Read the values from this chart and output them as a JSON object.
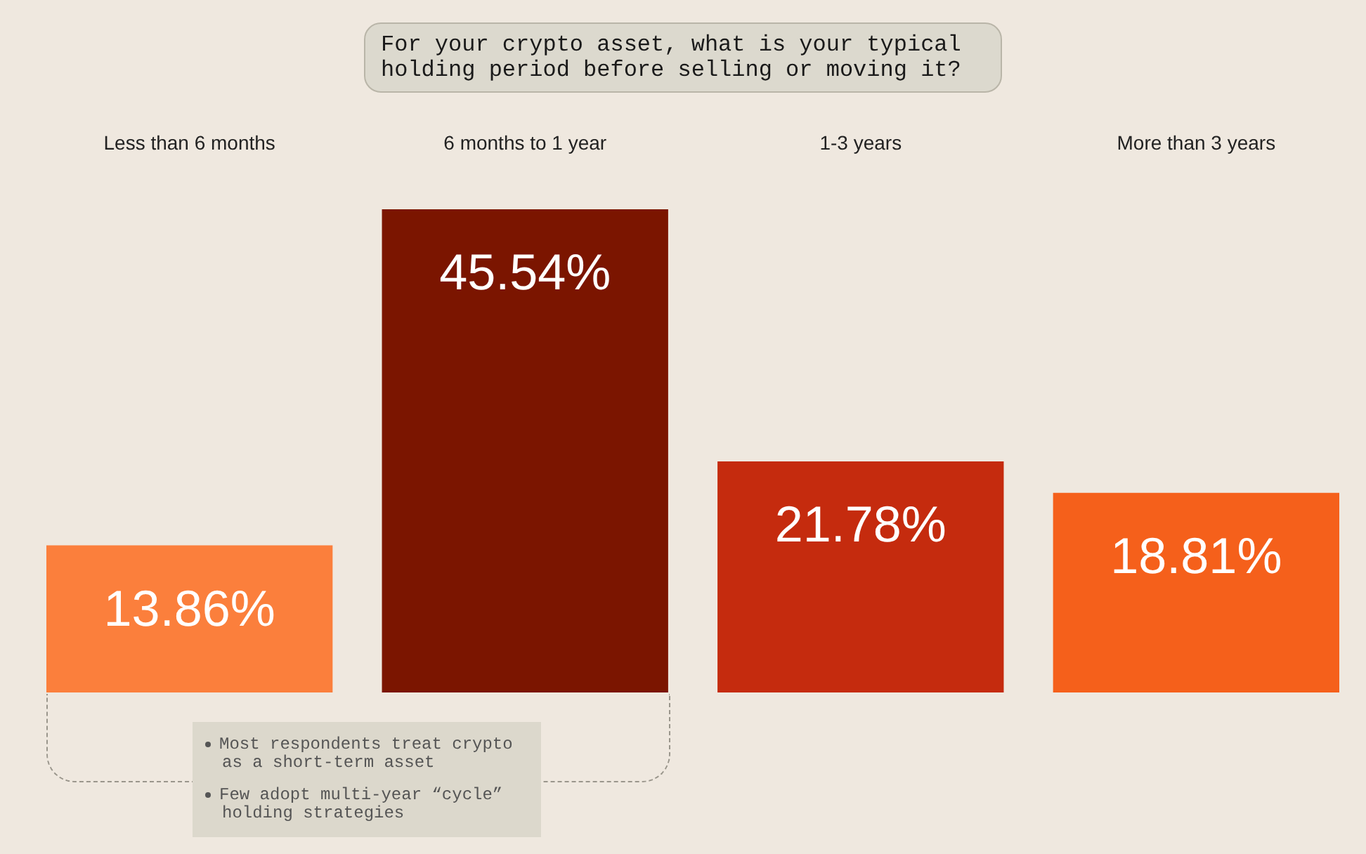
{
  "chart_data": {
    "type": "bar",
    "title": "For your crypto asset, what is your typical holding period before selling or moving it?",
    "categories": [
      "Less than 6 months",
      "6 months to 1 year",
      "1-3 years",
      "More than 3 years"
    ],
    "values": [
      13.86,
      45.54,
      21.78,
      18.81
    ],
    "colors": [
      "#fb7f3c",
      "#7b1500",
      "#c52b0e",
      "#f5601b"
    ],
    "value_labels": [
      "13.86%",
      "45.54%",
      "21.78%",
      "18.81%"
    ],
    "annotations": [
      "Most respondents treat crypto as a short-term asset",
      "Few adopt multi-year “cycle” holding strategies"
    ]
  }
}
